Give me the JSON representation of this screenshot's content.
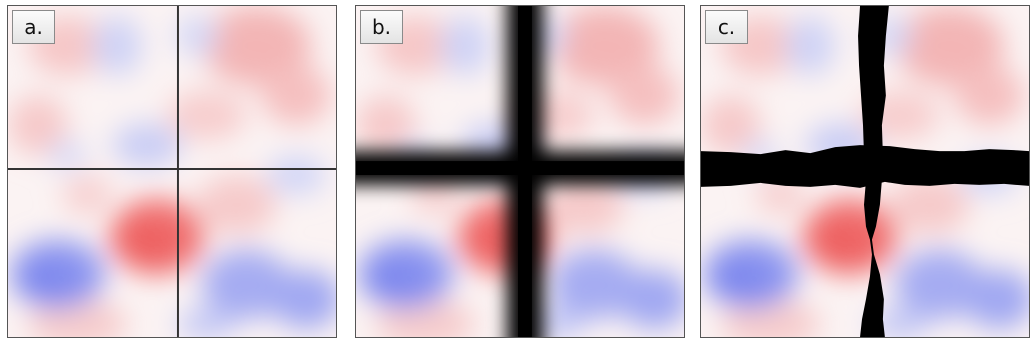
{
  "panels": [
    {
      "label": "a.",
      "divider_style": "thin lines"
    },
    {
      "label": "b.",
      "divider_style": "blurred thick bands"
    },
    {
      "label": "c.",
      "divider_style": "irregular black seams"
    }
  ],
  "colors": {
    "field_positive": "#f05a5a",
    "field_negative": "#6c78f0",
    "field_neutral": "#ffffff",
    "divider": "#000000",
    "frame": "#555555"
  }
}
